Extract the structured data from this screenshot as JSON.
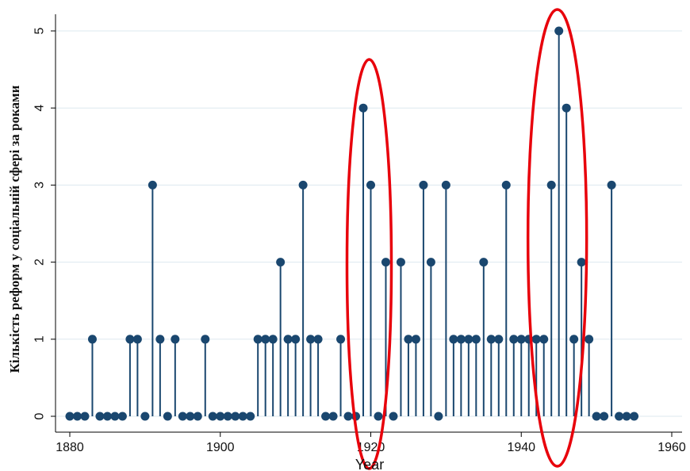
{
  "chart_data": {
    "type": "scatter",
    "style": "stem (dropline) plot",
    "xlabel": "Year",
    "ylabel": "Кількість реформ у соціальній сфері за роками",
    "xlim": [
      1880,
      1960
    ],
    "ylim": [
      0,
      5
    ],
    "x_ticks": [
      "1880",
      "1900",
      "1920",
      "1940",
      "1960"
    ],
    "y_ticks": [
      "0",
      "1",
      "2",
      "3",
      "4",
      "5"
    ],
    "grid": "horizontal",
    "series": [
      {
        "x": [
          1880,
          1881,
          1882,
          1883,
          1884,
          1885,
          1886,
          1887,
          1888,
          1889,
          1890,
          1891,
          1892,
          1893,
          1894,
          1895,
          1896,
          1897,
          1898,
          1899,
          1900,
          1901,
          1902,
          1903,
          1904,
          1905,
          1906,
          1907,
          1908,
          1909,
          1910,
          1911,
          1912,
          1913,
          1914,
          1915,
          1916,
          1917,
          1918,
          1919,
          1920,
          1921,
          1922,
          1923,
          1924,
          1925,
          1926,
          1927,
          1928,
          1929,
          1930,
          1931,
          1932,
          1933,
          1934,
          1935,
          1936,
          1937,
          1938,
          1939,
          1940,
          1941,
          1942,
          1943,
          1944,
          1945,
          1946,
          1947,
          1948,
          1949,
          1950,
          1951,
          1952,
          1953,
          1954,
          1955
        ],
        "y": [
          0,
          0,
          0,
          1,
          0,
          0,
          0,
          0,
          1,
          1,
          0,
          3,
          1,
          0,
          1,
          0,
          0,
          0,
          1,
          0,
          0,
          0,
          0,
          0,
          0,
          1,
          1,
          1,
          2,
          1,
          1,
          3,
          1,
          1,
          0,
          0,
          1,
          0,
          0,
          4,
          3,
          0,
          2,
          0,
          2,
          1,
          1,
          3,
          2,
          0,
          3,
          1,
          1,
          1,
          1,
          2,
          1,
          1,
          3,
          1,
          1,
          1,
          1,
          1,
          3,
          5,
          4,
          1,
          2,
          1,
          0,
          0,
          3,
          0,
          0,
          0
        ]
      }
    ],
    "annotations": [
      {
        "shape": "ellipse",
        "around_x": 1920
      },
      {
        "shape": "ellipse",
        "around_x": 1945
      }
    ],
    "colors": {
      "stem": "#1a476f",
      "marker": "#1a476f",
      "grid": "#dde8ef",
      "axis": "#000000",
      "annotation": "#e8000b"
    }
  }
}
